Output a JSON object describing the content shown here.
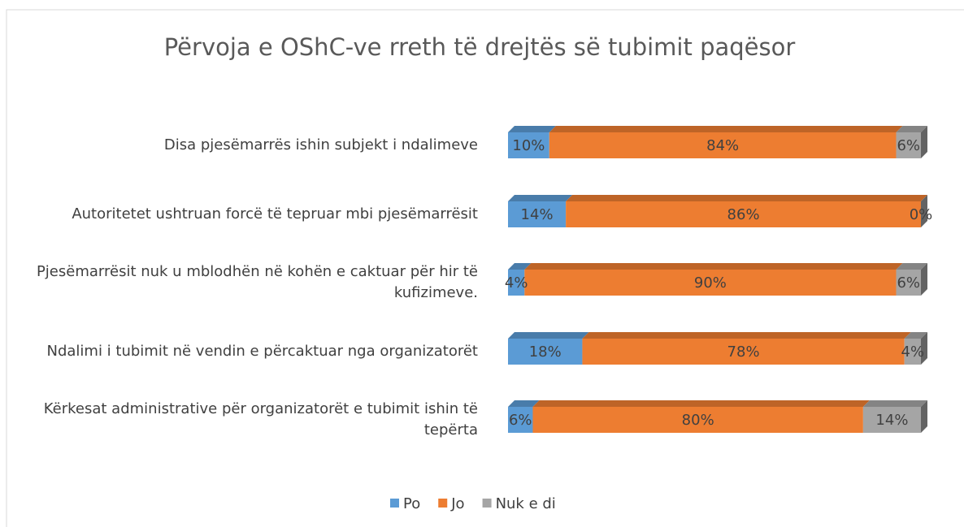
{
  "chart_data": {
    "type": "bar",
    "orientation": "horizontal",
    "stacked": true,
    "title": "Përvoja e OShC-ve rreth të drejtës së tubimit paqësor",
    "categories": [
      "Disa pjesëmarrës ishin subjekt i ndalimeve",
      "Autoritetet ushtruan forcë të tepruar mbi pjesëmarrësit",
      "Pjesëmarrësit nuk u mblodhën në kohën e caktuar për hir të kufizimeve.",
      "Ndalimi i tubimit në vendin e përcaktuar nga organizatorët",
      "Kërkesat administrative për organizatorët e tubimit ishin të tepërta"
    ],
    "series": [
      {
        "name": "Po",
        "color": "#5b9bd5",
        "values": [
          10,
          14,
          4,
          18,
          6
        ],
        "value_labels": [
          "10%",
          "14%",
          "4%",
          "18%",
          "6%"
        ]
      },
      {
        "name": "Jo",
        "color": "#ed7d31",
        "values": [
          84,
          86,
          90,
          78,
          80
        ],
        "value_labels": [
          "84%",
          "86%",
          "90%",
          "78%",
          "80%"
        ]
      },
      {
        "name": "Nuk e di",
        "color": "#a5a5a5",
        "values": [
          6,
          0,
          6,
          4,
          14
        ],
        "value_labels": [
          "6%",
          "0%",
          "6%",
          "4%",
          "14%"
        ]
      }
    ],
    "xlim": [
      0,
      100
    ],
    "legend": "bottom"
  }
}
